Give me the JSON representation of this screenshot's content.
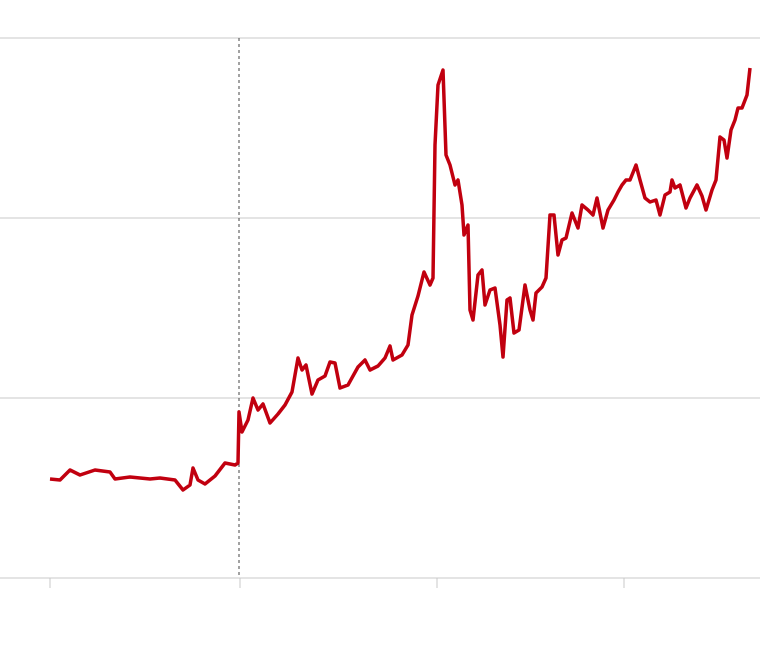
{
  "chart_data": {
    "type": "line",
    "x": [
      0,
      10,
      20,
      30,
      45,
      60,
      65,
      80,
      100,
      110,
      125,
      133,
      140,
      143,
      148,
      155,
      165,
      175,
      185,
      188,
      189,
      192,
      198,
      203,
      208,
      213,
      220,
      228,
      235,
      242,
      248,
      252,
      256,
      262,
      268,
      275,
      280,
      285,
      290,
      298,
      308,
      315,
      320,
      328,
      335,
      340,
      343,
      352,
      358,
      362,
      368,
      374,
      380,
      383,
      385,
      388,
      393,
      396,
      400,
      405,
      408,
      412,
      414,
      418,
      420,
      423,
      428,
      432,
      435,
      440,
      445,
      450,
      453,
      457,
      460,
      464,
      469,
      475,
      480,
      483,
      486,
      492,
      496,
      500,
      504,
      508,
      512,
      516,
      522,
      528,
      532,
      538,
      543,
      547,
      553,
      558,
      564,
      568,
      572,
      576,
      580,
      586,
      590,
      595,
      600,
      606,
      610,
      615,
      620,
      622,
      625,
      630,
      636,
      640,
      647,
      652,
      656,
      662,
      666,
      670,
      674,
      677,
      681,
      685,
      688,
      692,
      697,
      700
    ],
    "series": [
      {
        "color": "#c1000f",
        "values": [
          99,
          98,
          108,
          103,
          108,
          106,
          99,
          101,
          99,
          100,
          98,
          88,
          93,
          110,
          98,
          94,
          102,
          115,
          113,
          115,
          166,
          146,
          158,
          180,
          168,
          174,
          155,
          164,
          173,
          186,
          220,
          208,
          213,
          184,
          198,
          202,
          216,
          215,
          190,
          193,
          211,
          218,
          208,
          212,
          220,
          232,
          218,
          223,
          233,
          263,
          282,
          306,
          293,
          300,
          433,
          493,
          508,
          423,
          413,
          393,
          398,
          373,
          343,
          353,
          268,
          258,
          303,
          308,
          273,
          288,
          290,
          253,
          221,
          278,
          280,
          245,
          248,
          293,
          268,
          258,
          285,
          291,
          300,
          363,
          363,
          323,
          338,
          340,
          365,
          350,
          373,
          368,
          363,
          380,
          350,
          368,
          378,
          386,
          393,
          398,
          398,
          413,
          398,
          380,
          376,
          378,
          363,
          383,
          386,
          398,
          390,
          393,
          370,
          380,
          393,
          382,
          368,
          388,
          398,
          441,
          438,
          420,
          448,
          458,
          470,
          470,
          483,
          510
        ]
      }
    ],
    "xlim": [
      -50,
      710
    ],
    "xticks": [
      0,
      190,
      387,
      574
    ],
    "ylim": [
      0,
      540
    ],
    "yticks": [
      0,
      180,
      360,
      540
    ],
    "grid": true,
    "reference_line": {
      "x": 189
    }
  }
}
